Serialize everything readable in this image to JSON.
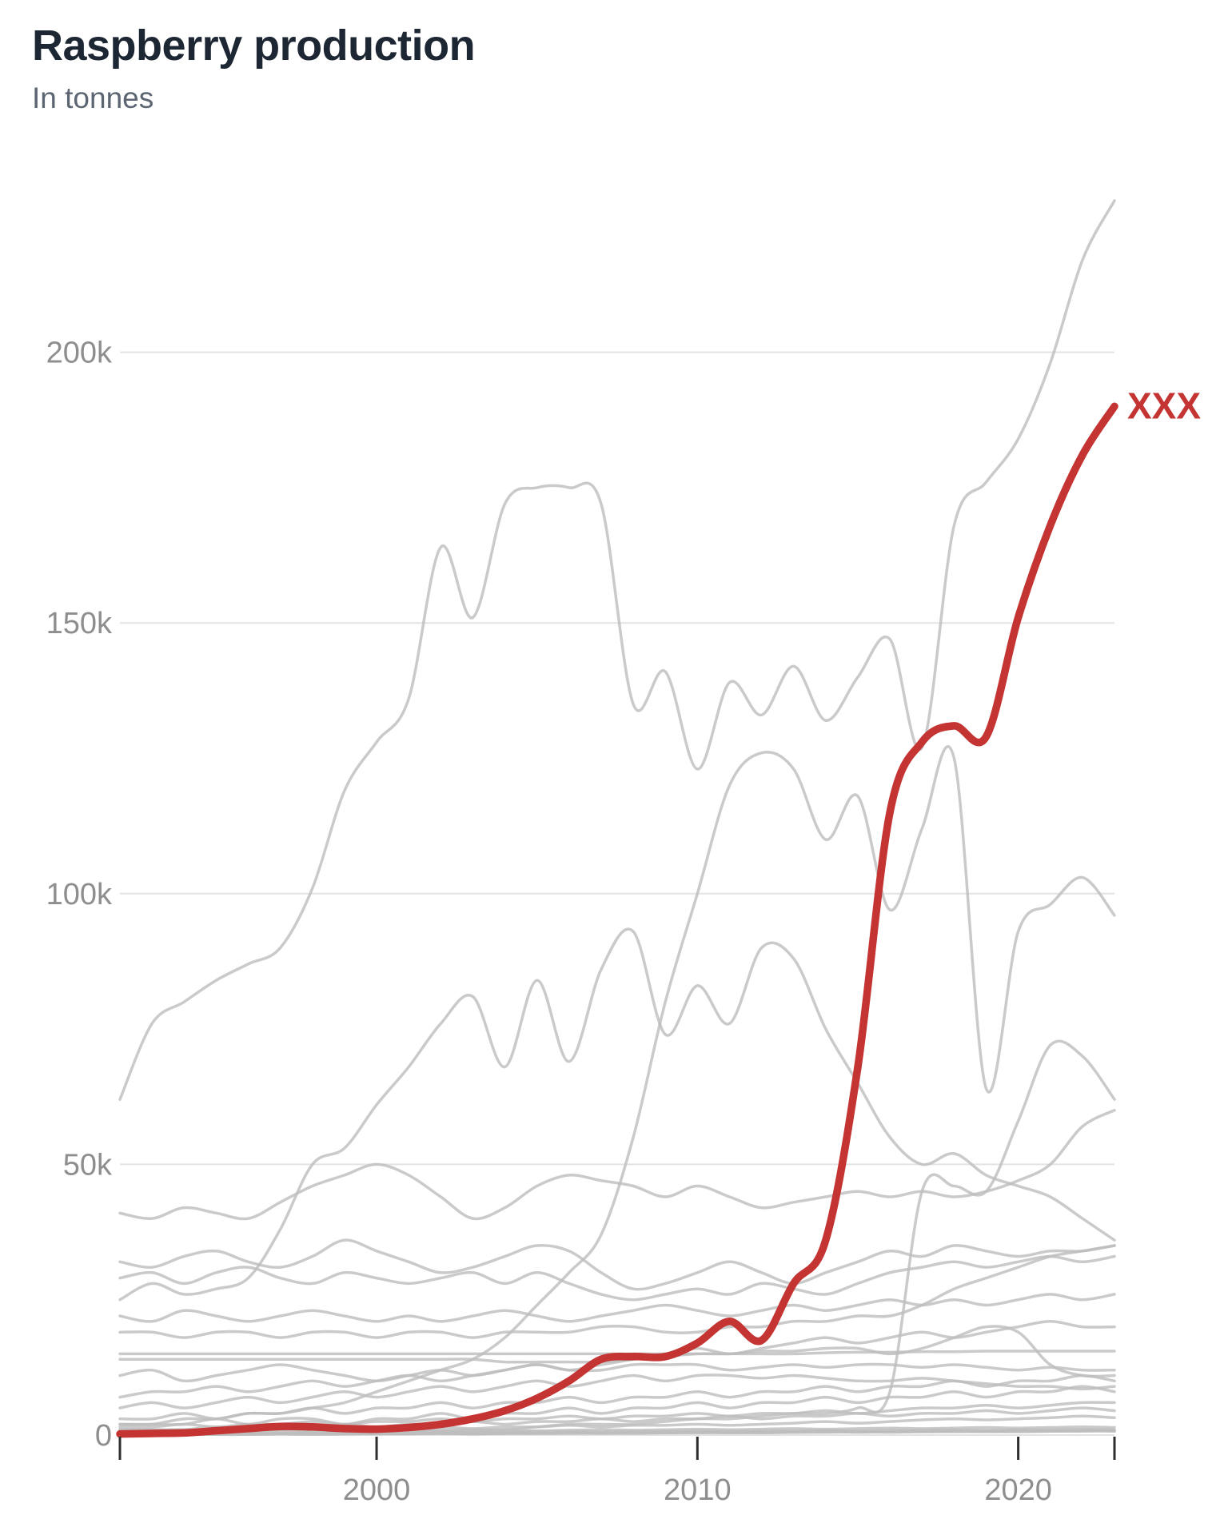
{
  "title": {
    "text": "Raspberry production"
  },
  "subtitle": {
    "text": "In tonnes"
  },
  "colors": {
    "background": "#ffffff",
    "title": "#1d2633",
    "subtitle": "#5c6672",
    "highlight": "#c43432",
    "gray_line": "#bdbdbd",
    "grid": "#e3e3e3",
    "axis_label": "#8e8e8e",
    "tick_mark": "#2e2e2e"
  },
  "chart_data": {
    "type": "line",
    "title": "Raspberry production",
    "ylabel": "In tonnes",
    "xlabel": "",
    "grid": "horizontal",
    "legend_position": "end-of-line-label",
    "highlight_label": "XXX",
    "xlim": [
      1992,
      2023
    ],
    "ylim": [
      0,
      230000
    ],
    "x": [
      1992,
      1993,
      1994,
      1995,
      1996,
      1997,
      1998,
      1999,
      2000,
      2001,
      2002,
      2003,
      2004,
      2005,
      2006,
      2007,
      2008,
      2009,
      2010,
      2011,
      2012,
      2013,
      2014,
      2015,
      2016,
      2017,
      2018,
      2019,
      2020,
      2021,
      2022,
      2023
    ],
    "y_ticks": [
      {
        "value": 0,
        "label": "0"
      },
      {
        "value": 50000,
        "label": "50k"
      },
      {
        "value": 100000,
        "label": "100k"
      },
      {
        "value": 150000,
        "label": "150k"
      },
      {
        "value": 200000,
        "label": "200k"
      }
    ],
    "x_ticks": [
      {
        "value": 1992,
        "label": ""
      },
      {
        "value": 2000,
        "label": "2000"
      },
      {
        "value": 2010,
        "label": "2010"
      },
      {
        "value": 2020,
        "label": "2020"
      },
      {
        "value": 2023,
        "label": ""
      }
    ],
    "series": [
      {
        "name": "line-01",
        "role": "background",
        "values": [
          62000,
          76000,
          80000,
          84000,
          87000,
          90000,
          101000,
          119000,
          128000,
          136000,
          164000,
          151000,
          172000,
          175000,
          175000,
          172000,
          135000,
          141000,
          123000,
          139000,
          133000,
          142000,
          132000,
          140000,
          147000,
          127000,
          168000,
          176000,
          184000,
          198000,
          217000,
          228000
        ]
      },
      {
        "name": "line-02",
        "role": "background",
        "values": [
          2000,
          2000,
          3000,
          3000,
          4000,
          4000,
          5000,
          6000,
          8000,
          10000,
          12000,
          14000,
          18000,
          24000,
          30000,
          37000,
          55000,
          80000,
          100000,
          120000,
          126000,
          123000,
          110000,
          118000,
          97000,
          112000,
          125000,
          64000,
          93000,
          98000,
          103000,
          96000
        ]
      },
      {
        "name": "line-03",
        "role": "background",
        "values": [
          25000,
          28000,
          26000,
          27000,
          29000,
          38000,
          50000,
          53000,
          61000,
          68000,
          76000,
          81000,
          68000,
          84000,
          69000,
          86000,
          93000,
          74000,
          83000,
          76000,
          90000,
          88000,
          75000,
          65000,
          55000,
          50000,
          52000,
          48000,
          46000,
          44000,
          40000,
          36000
        ]
      },
      {
        "name": "line-04",
        "role": "background",
        "values": [
          41000,
          40000,
          42000,
          41000,
          40000,
          43000,
          46000,
          48000,
          50000,
          48000,
          44000,
          40000,
          42000,
          46000,
          48000,
          47000,
          46000,
          44000,
          46000,
          44000,
          42000,
          43000,
          44000,
          45000,
          44000,
          45000,
          44000,
          45000,
          47000,
          50000,
          57000,
          60000
        ]
      },
      {
        "name": "line-05",
        "role": "background",
        "values": [
          1000,
          1000,
          1000,
          1000,
          1000,
          1000,
          1000,
          1000,
          1000,
          1000,
          1000,
          1000,
          1000,
          1500,
          2000,
          2000,
          2000,
          2500,
          3000,
          3000,
          3500,
          4000,
          4000,
          5000,
          8000,
          45000,
          46000,
          45000,
          58000,
          72000,
          70000,
          62000
        ]
      },
      {
        "name": "line-06",
        "role": "background",
        "values": [
          32000,
          31000,
          33000,
          34000,
          32000,
          31000,
          33000,
          36000,
          34000,
          32000,
          30000,
          31000,
          33000,
          35000,
          34000,
          30000,
          27000,
          28000,
          30000,
          32000,
          30000,
          28000,
          30000,
          32000,
          34000,
          33000,
          35000,
          34000,
          33000,
          34000,
          34000,
          35000
        ]
      },
      {
        "name": "line-07",
        "role": "background",
        "values": [
          29000,
          30000,
          28000,
          30000,
          31000,
          29000,
          28000,
          30000,
          29000,
          28000,
          29000,
          30000,
          28000,
          30000,
          28000,
          26000,
          25000,
          26000,
          27000,
          26000,
          28000,
          27000,
          26000,
          28000,
          30000,
          31000,
          32000,
          31000,
          32000,
          33000,
          32000,
          33000
        ]
      },
      {
        "name": "line-08",
        "role": "background",
        "values": [
          22000,
          21000,
          23000,
          22000,
          21000,
          22000,
          23000,
          22000,
          21000,
          22000,
          21000,
          22000,
          23000,
          22000,
          21000,
          22000,
          23000,
          24000,
          23000,
          22000,
          23000,
          24000,
          23000,
          24000,
          25000,
          24000,
          25000,
          24000,
          25000,
          26000,
          25000,
          26000
        ]
      },
      {
        "name": "line-09",
        "role": "background",
        "values": [
          19000,
          19000,
          18000,
          19000,
          19000,
          18000,
          19000,
          19000,
          18000,
          19000,
          19000,
          18000,
          19000,
          19000,
          19000,
          20000,
          20000,
          19000,
          19000,
          20000,
          20000,
          21000,
          21000,
          22000,
          22000,
          24000,
          27000,
          29000,
          31000,
          33000,
          34000,
          35000
        ]
      },
      {
        "name": "line-10",
        "role": "background",
        "values": [
          15000,
          15000,
          15000,
          15000,
          15000,
          15000,
          15000,
          15000,
          15000,
          15000,
          15000,
          15000,
          15000,
          15000,
          15000,
          15000,
          15000,
          15000,
          15000,
          15000,
          15000,
          15000,
          15200,
          15300,
          15300,
          15400,
          15400,
          15500,
          15500,
          15500,
          15500,
          15500
        ]
      },
      {
        "name": "line-11",
        "role": "background",
        "values": [
          14000,
          14000,
          14000,
          14000,
          14000,
          14000,
          14000,
          14000,
          14000,
          14000,
          14000,
          14000,
          13500,
          13500,
          13500,
          13500,
          14000,
          14500,
          15000,
          15000,
          15500,
          15500,
          16000,
          16000,
          15000,
          16000,
          18000,
          20000,
          19000,
          13000,
          11000,
          11000
        ]
      },
      {
        "name": "line-12",
        "role": "background",
        "values": [
          11000,
          12000,
          10000,
          11000,
          12000,
          13000,
          12000,
          11000,
          10000,
          11000,
          12000,
          11000,
          12000,
          13000,
          12000,
          12000,
          13000,
          13000,
          13000,
          12000,
          12500,
          13000,
          12500,
          13000,
          13000,
          12500,
          13000,
          12500,
          12000,
          12500,
          12000,
          12000
        ]
      },
      {
        "name": "line-13",
        "role": "background",
        "values": [
          7000,
          8000,
          8000,
          9000,
          8000,
          9000,
          10000,
          9000,
          10000,
          11000,
          10000,
          11000,
          12000,
          13000,
          12000,
          13000,
          14000,
          15000,
          16000,
          15000,
          16000,
          17000,
          18000,
          17000,
          18000,
          19000,
          18000,
          19000,
          20000,
          21000,
          20000,
          20000
        ]
      },
      {
        "name": "line-14",
        "role": "background",
        "values": [
          5000,
          6000,
          5000,
          6000,
          7000,
          6000,
          7000,
          8000,
          7000,
          8000,
          9000,
          8000,
          9000,
          10000,
          9000,
          10000,
          11000,
          10000,
          11000,
          11000,
          10500,
          11000,
          10500,
          10000,
          10000,
          10500,
          10000,
          9500,
          9000,
          9000,
          8500,
          9000
        ]
      },
      {
        "name": "line-15",
        "role": "background",
        "values": [
          3000,
          3000,
          4000,
          3000,
          4000,
          4000,
          5000,
          4000,
          5000,
          5000,
          6000,
          5000,
          6000,
          6000,
          7000,
          6000,
          7000,
          7000,
          8000,
          7000,
          8000,
          8000,
          9000,
          8000,
          9000,
          9000,
          10000,
          9000,
          10000,
          10000,
          11000,
          10000
        ]
      },
      {
        "name": "line-16",
        "role": "background",
        "values": [
          2000,
          2000,
          2000,
          3000,
          2000,
          3000,
          3000,
          2000,
          3000,
          3000,
          4000,
          3000,
          4000,
          4000,
          5000,
          4000,
          5000,
          5000,
          6000,
          5000,
          6000,
          6000,
          7000,
          6000,
          7000,
          7000,
          8000,
          7000,
          8000,
          8000,
          9000,
          8000
        ]
      },
      {
        "name": "line-17",
        "role": "background",
        "values": [
          1500,
          1500,
          2000,
          1500,
          2000,
          2000,
          2500,
          2000,
          2500,
          2500,
          3000,
          2500,
          3000,
          3000,
          3500,
          3000,
          3500,
          3500,
          4000,
          3500,
          4000,
          4000,
          4500,
          4000,
          4500,
          5000,
          5000,
          5500,
          5000,
          5500,
          6000,
          6000
        ]
      },
      {
        "name": "line-18",
        "role": "background",
        "values": [
          1000,
          1000,
          1000,
          1500,
          1000,
          1500,
          1500,
          2000,
          1500,
          2000,
          2000,
          2500,
          2000,
          2500,
          2500,
          3000,
          2500,
          3000,
          3000,
          3500,
          3000,
          3500,
          3500,
          4000,
          3500,
          4000,
          4000,
          4500,
          4000,
          4500,
          5000,
          4500
        ]
      },
      {
        "name": "line-19",
        "role": "background",
        "values": [
          800,
          800,
          1000,
          800,
          1000,
          1000,
          1200,
          1000,
          1200,
          1200,
          1500,
          1200,
          1500,
          1500,
          1800,
          1500,
          1800,
          1800,
          2000,
          1800,
          2000,
          2200,
          2500,
          2200,
          2500,
          2800,
          3000,
          2800,
          3000,
          3200,
          3500,
          3200
        ]
      },
      {
        "name": "line-20",
        "role": "background",
        "values": [
          500,
          500,
          600,
          500,
          600,
          700,
          600,
          700,
          700,
          800,
          700,
          800,
          900,
          800,
          900,
          1000,
          900,
          1000,
          1100,
          1000,
          1100,
          1200,
          1100,
          1200,
          1300,
          1200,
          1300,
          1400,
          1300,
          1400,
          1500,
          1400
        ]
      },
      {
        "name": "line-21",
        "role": "background",
        "values": [
          300,
          300,
          400,
          300,
          400,
          400,
          500,
          400,
          500,
          500,
          600,
          500,
          600,
          600,
          700,
          600,
          700,
          700,
          800,
          700,
          800,
          800,
          900,
          800,
          900,
          900,
          1000,
          900,
          1000,
          1000,
          1100,
          1000
        ]
      },
      {
        "name": "line-22",
        "role": "background",
        "values": [
          200,
          200,
          200,
          300,
          200,
          300,
          300,
          200,
          300,
          300,
          400,
          300,
          400,
          400,
          500,
          400,
          500,
          500,
          600,
          500,
          600,
          600,
          700,
          600,
          700,
          700,
          800,
          700,
          800,
          800,
          900,
          800
        ]
      },
      {
        "name": "line-23",
        "role": "background",
        "values": [
          100,
          100,
          200,
          100,
          200,
          200,
          300,
          200,
          300,
          300,
          300,
          200,
          300,
          300,
          400,
          300,
          400,
          400,
          500,
          400,
          500,
          500,
          600,
          500,
          600,
          600,
          700,
          600,
          700,
          700,
          800,
          700
        ]
      },
      {
        "name": "line-24",
        "role": "background",
        "values": [
          100,
          100,
          100,
          100,
          100,
          200,
          100,
          200,
          200,
          200,
          300,
          200,
          300,
          300,
          300,
          400,
          300,
          400,
          400,
          500,
          400,
          500,
          500,
          600,
          500,
          600,
          600,
          700,
          600,
          700,
          700,
          800
        ]
      },
      {
        "name": "XXX",
        "role": "highlight",
        "values": [
          200,
          300,
          400,
          800,
          1200,
          1600,
          1500,
          1200,
          1100,
          1400,
          2000,
          3000,
          4500,
          6800,
          10000,
          14000,
          14500,
          14500,
          17000,
          21000,
          17500,
          28000,
          36000,
          68000,
          115000,
          128000,
          131000,
          129000,
          151000,
          168000,
          181000,
          190000
        ]
      }
    ]
  }
}
